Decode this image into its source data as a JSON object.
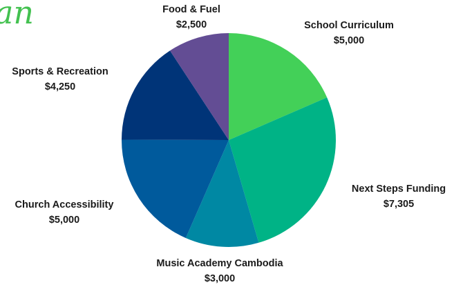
{
  "chart_data": {
    "type": "pie",
    "title": "an",
    "categories": [
      "School Curriculum",
      "Next Steps Funding",
      "Music Academy Cambodia",
      "Church Accessibility",
      "Sports & Recreation",
      "Food & Fuel"
    ],
    "values": [
      5000,
      7305,
      3000,
      5000,
      4250,
      2500
    ],
    "value_labels": [
      "$5,000",
      "$7,305",
      "$3,000",
      "$5,000",
      "$4,250",
      "$2,500"
    ],
    "colors": [
      "#43d058",
      "#00b386",
      "#0088a3",
      "#005a9c",
      "#003478",
      "#634d94"
    ]
  }
}
